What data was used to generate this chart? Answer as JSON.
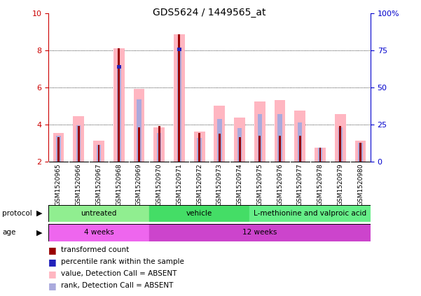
{
  "title": "GDS5624 / 1449565_at",
  "samples": [
    "GSM1520965",
    "GSM1520966",
    "GSM1520967",
    "GSM1520968",
    "GSM1520969",
    "GSM1520970",
    "GSM1520971",
    "GSM1520972",
    "GSM1520973",
    "GSM1520974",
    "GSM1520975",
    "GSM1520976",
    "GSM1520977",
    "GSM1520978",
    "GSM1520979",
    "GSM1520980"
  ],
  "red_values": [
    3.3,
    3.9,
    2.9,
    8.1,
    3.85,
    3.9,
    8.85,
    3.55,
    3.5,
    3.3,
    3.4,
    3.4,
    3.4,
    2.75,
    3.9,
    3.0
  ],
  "pink_values": [
    3.55,
    4.45,
    3.1,
    8.1,
    5.9,
    3.85,
    8.85,
    3.6,
    5.0,
    4.35,
    5.25,
    5.3,
    4.75,
    2.75,
    4.55,
    3.1
  ],
  "light_blue_values": [
    3.4,
    3.95,
    2.9,
    7.1,
    5.35,
    3.55,
    8.05,
    3.25,
    4.3,
    3.8,
    4.55,
    4.55,
    4.1,
    2.75,
    3.85,
    3.0
  ],
  "blue_dot_indices": [
    3,
    6
  ],
  "blue_dot_values": [
    7.1,
    8.05
  ],
  "ylim": [
    2,
    10
  ],
  "yticks_left": [
    2,
    4,
    6,
    8,
    10
  ],
  "yticks_right": [
    0,
    25,
    50,
    75,
    100
  ],
  "protocol_groups": [
    {
      "label": "untreated",
      "start": 0,
      "end": 5,
      "color": "#90EE90"
    },
    {
      "label": "vehicle",
      "start": 5,
      "end": 10,
      "color": "#44DD66"
    },
    {
      "label": "L-methionine and valproic acid",
      "start": 10,
      "end": 16,
      "color": "#66EE88"
    }
  ],
  "age_groups": [
    {
      "label": "4 weeks",
      "start": 0,
      "end": 5,
      "color": "#EE66EE"
    },
    {
      "label": "12 weeks",
      "start": 5,
      "end": 16,
      "color": "#CC44CC"
    }
  ],
  "red_color": "#990000",
  "pink_color": "#FFB6C1",
  "blue_color": "#2222BB",
  "light_blue_color": "#AAAADD",
  "left_axis_color": "#CC0000",
  "right_axis_color": "#0000CC",
  "tick_bg_color": "#C8C8C8",
  "plot_bg_color": "#FFFFFF",
  "grid_color": "#000000"
}
